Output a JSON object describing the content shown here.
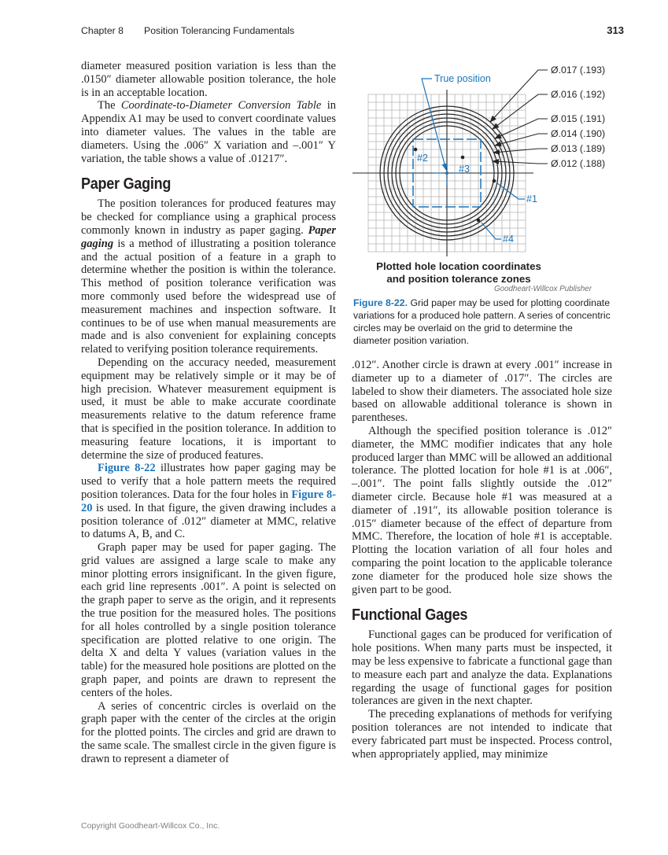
{
  "header": {
    "chapter": "Chapter 8",
    "title": "Position Tolerancing Fundamentals",
    "page_number": "313"
  },
  "footer": {
    "copyright": "Copyright Goodheart-Willcox Co., Inc."
  },
  "left_column": {
    "blocks": [
      {
        "type": "p",
        "indent": false,
        "runs": [
          {
            "t": "diameter measured position variation is less than the .0150″ diameter allowable position tolerance, the hole is in an acceptable location."
          }
        ]
      },
      {
        "type": "p",
        "indent": true,
        "runs": [
          {
            "t": "The "
          },
          {
            "t": "Coordinate-to-Diameter Conversion Table",
            "s": "i"
          },
          {
            "t": " in Appendix A1 may be used to convert coordinate values into diameter values. The values in the table are diameters. Using the .006″ X variation and –.001″ Y variation, the table shows a value of .01217″."
          }
        ]
      },
      {
        "type": "h",
        "text": "Paper Gaging"
      },
      {
        "type": "p",
        "indent": true,
        "runs": [
          {
            "t": "The position tolerances for produced features may be checked for compliance using a graphical process commonly known in industry as paper gaging. "
          },
          {
            "t": "Paper gaging",
            "s": "bi"
          },
          {
            "t": " is a method of illustrating a position tolerance and the actual position of a feature in a graph to determine whether the position is within the tolerance. This method of position tolerance verification was more commonly used before the widespread use of measurement machines and inspection software. It continues to be of use when manual measurements are made and is also convenient for explaining concepts related to verifying position tolerance requirements."
          }
        ]
      },
      {
        "type": "p",
        "indent": true,
        "runs": [
          {
            "t": "Depending on the accuracy needed, measurement equipment may be relatively simple or it may be of high precision. Whatever measurement equipment is used, it must be able to make accurate coordinate measurements relative to the datum reference frame that is specified in the position tolerance. In addition to measuring feature locations, it is important to determine the size of produced features."
          }
        ]
      },
      {
        "type": "p",
        "indent": true,
        "runs": [
          {
            "t": "Figure 8-22",
            "s": "ref"
          },
          {
            "t": " illustrates how paper gaging may be used to verify that a hole pattern meets the required position tolerances. Data for the four holes in "
          },
          {
            "t": "Figure 8-20",
            "s": "ref"
          },
          {
            "t": " is used. In that figure, the given drawing includes a position tolerance of .012″ diameter at MMC, relative to datums A, B, and C."
          }
        ]
      },
      {
        "type": "p",
        "indent": true,
        "runs": [
          {
            "t": "Graph paper may be used for paper gaging. The grid values are assigned a large scale to make any minor plotting errors insignificant. In the given figure, each grid line represents .001″. A point is selected on the graph paper to serve as the origin, and it represents the true position for the measured holes. The positions for all holes controlled by a single position tolerance specification are plotted relative to one origin. The delta X and delta Y values (variation values in the table) for the measured hole positions are plotted on the graph paper, and points are drawn to represent the centers of the holes."
          }
        ]
      },
      {
        "type": "p",
        "indent": true,
        "runs": [
          {
            "t": "A series of concentric circles is overlaid on the graph paper with the center of the circles at the origin for the plotted points. The circles and grid are drawn to the same scale. The smallest circle in the given figure is drawn to represent a diameter of"
          }
        ]
      }
    ]
  },
  "right_column": {
    "blocks": [
      {
        "type": "p",
        "indent": false,
        "runs": [
          {
            "t": ".012″. Another circle is drawn at every .001″ increase in diameter up to a diameter of .017″. The circles are labeled to show their diameters. The associated hole size based on allowable additional tolerance is shown in parentheses."
          }
        ]
      },
      {
        "type": "p",
        "indent": true,
        "runs": [
          {
            "t": "Although the specified position tolerance is .012″ diameter, the MMC modifier indicates that any hole produced larger than MMC will be allowed an additional tolerance. The plotted location for hole #1 is at .006″, –.001″. The point falls slightly outside the .012″ diameter circle. Because hole #1 was measured at a diameter of .191″, its allowable position tolerance is .015″ diameter because of the effect of departure from MMC. Therefore, the location of hole #1 is acceptable. Plotting the location variation of all four holes and comparing the point location to the applicable tolerance zone diameter for the produced hole size shows the given part to be good."
          }
        ]
      },
      {
        "type": "h",
        "text": "Functional Gages"
      },
      {
        "type": "p",
        "indent": true,
        "runs": [
          {
            "t": "Functional gages can be produced for verification of hole positions. When many parts must be inspected, it may be less expensive to fabricate a functional gage than to measure each part and analyze the data. Explanations regarding the usage of functional gages for position tolerances are given in the next chapter."
          }
        ]
      },
      {
        "type": "p",
        "indent": true,
        "runs": [
          {
            "t": "The preceding explanations of methods for verifying position tolerances are not intended to indicate that every fabricated part must be inspected. Process control, when appropriately applied, may minimize"
          }
        ]
      }
    ]
  },
  "figure": {
    "true_position_label": "True position",
    "callouts": [
      "Ø.017 (.193)",
      "Ø.016 (.192)",
      "Ø.015 (.191)",
      "Ø.014 (.190)",
      "Ø.013 (.189)",
      "Ø.012 (.188)"
    ],
    "circle_diameters_in": [
      0.012,
      0.013,
      0.014,
      0.015,
      0.016,
      0.017
    ],
    "grid_increment_in": 0.001,
    "holes": [
      {
        "id": "#1",
        "dx": 0.006,
        "dy": -0.001
      },
      {
        "id": "#2",
        "dx": -0.004,
        "dy": 0.003
      },
      {
        "id": "#3",
        "dx": 0.002,
        "dy": 0.002
      },
      {
        "id": "#4",
        "dx": 0.004,
        "dy": -0.006
      }
    ],
    "title_line1": "Plotted hole location coordinates",
    "title_line2": "and position tolerance zones",
    "credit": "Goodheart-Willcox Publisher",
    "caption_label": "Figure 8-22.",
    "caption_text": " Grid paper may be used for plotting coordinate variations for a produced hole pattern. A series of concentric circles may be overlaid on the grid to determine the diameter position variation.",
    "colors": {
      "accent_blue": "#1c75bb",
      "grid_gray": "#b5b5b5",
      "line_dark": "#262626"
    }
  }
}
